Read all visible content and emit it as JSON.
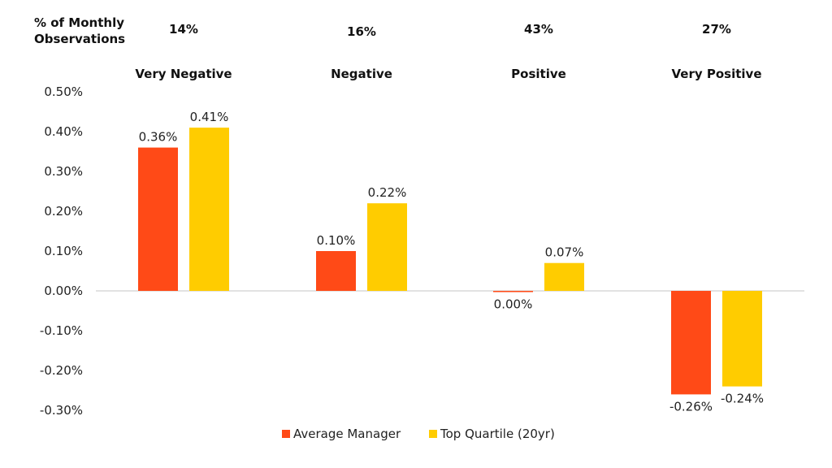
{
  "chart_data": {
    "type": "bar",
    "header_label": [
      "% of Monthly",
      "Observations"
    ],
    "observation_shares": [
      "14%",
      "16%",
      "43%",
      "27%"
    ],
    "categories": [
      "Very Negative",
      "Negative",
      "Positive",
      "Very Positive"
    ],
    "series": [
      {
        "name": "Average Manager",
        "color": "#FF4A17",
        "values": [
          0.36,
          0.1,
          0.0,
          -0.26
        ],
        "labels": [
          "0.36%",
          "0.10%",
          "0.00%",
          "-0.26%"
        ]
      },
      {
        "name": "Top Quartile (20yr)",
        "color": "#FFCC00",
        "values": [
          0.41,
          0.22,
          0.07,
          -0.24
        ],
        "labels": [
          "0.41%",
          "0.22%",
          "0.07%",
          "-0.24%"
        ]
      }
    ],
    "ylim": [
      -0.3,
      0.5
    ],
    "yticks": [
      "0.50%",
      "0.40%",
      "0.30%",
      "0.20%",
      "0.10%",
      "0.00%",
      "-0.10%",
      "-0.20%",
      "-0.30%"
    ],
    "ytick_values": [
      0.5,
      0.4,
      0.3,
      0.2,
      0.1,
      0.0,
      -0.1,
      -0.2,
      -0.3
    ],
    "grid": false,
    "legend_position": "bottom"
  }
}
